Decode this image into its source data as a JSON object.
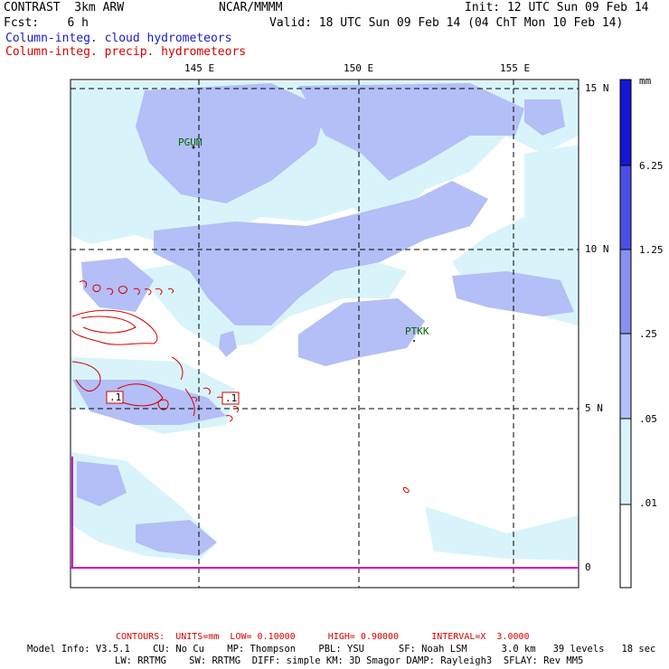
{
  "header": {
    "model": "CONTRAST  3km ARW",
    "org": "NCAR/MMMM",
    "init": "Init: 12 UTC Sun 09 Feb 14",
    "fcst": "Fcst:    6 h",
    "valid": "Valid: 18 UTC Sun 09 Feb 14 (04 ChT Mon 10 Feb 14)",
    "field1": "Column-integ. cloud hydrometeors",
    "field2": "Column-integ. precip. hydrometeors"
  },
  "axes": {
    "lon_labels": [
      "145 E",
      "150 E",
      "155 E"
    ],
    "lat_labels": [
      "15 N",
      "10 N",
      "5 N",
      "0"
    ]
  },
  "stations": [
    "PGUM",
    "PTKK"
  ],
  "contour_labels": [
    ".1",
    ".1"
  ],
  "colorbar": {
    "unit": "mm",
    "levels": [
      "6.25",
      "1.25",
      ".25",
      ".05",
      ".01"
    ],
    "colors": [
      "#ffffff",
      "#d8f4fa",
      "#b4bef7",
      "#8890f0",
      "#4a50e6",
      "#1616d2"
    ]
  },
  "footer": {
    "contours": "CONTOURS:  UNITS=mm  LOW= 0.10000      HIGH= 0.90000      INTERVAL=X  3.0000",
    "info1": "Model Info: V3.5.1    CU: No Cu    MP: Thompson    PBL: YSU      SF: Noah LSM      3.0 km   39 levels   18 sec",
    "info2": "LW: RRTMG    SW: RRTMG  DIFF: simple KM: 3D Smagor DAMP: Rayleigh3  SFLAY: Rev MM5"
  },
  "colors": {
    "cloud_text": "#1a1acc",
    "precip_text": "#d40000",
    "light": "#d8f4fa",
    "medium": "#b4bef7",
    "contour": "#d40000",
    "equator": "#cc00cc"
  }
}
